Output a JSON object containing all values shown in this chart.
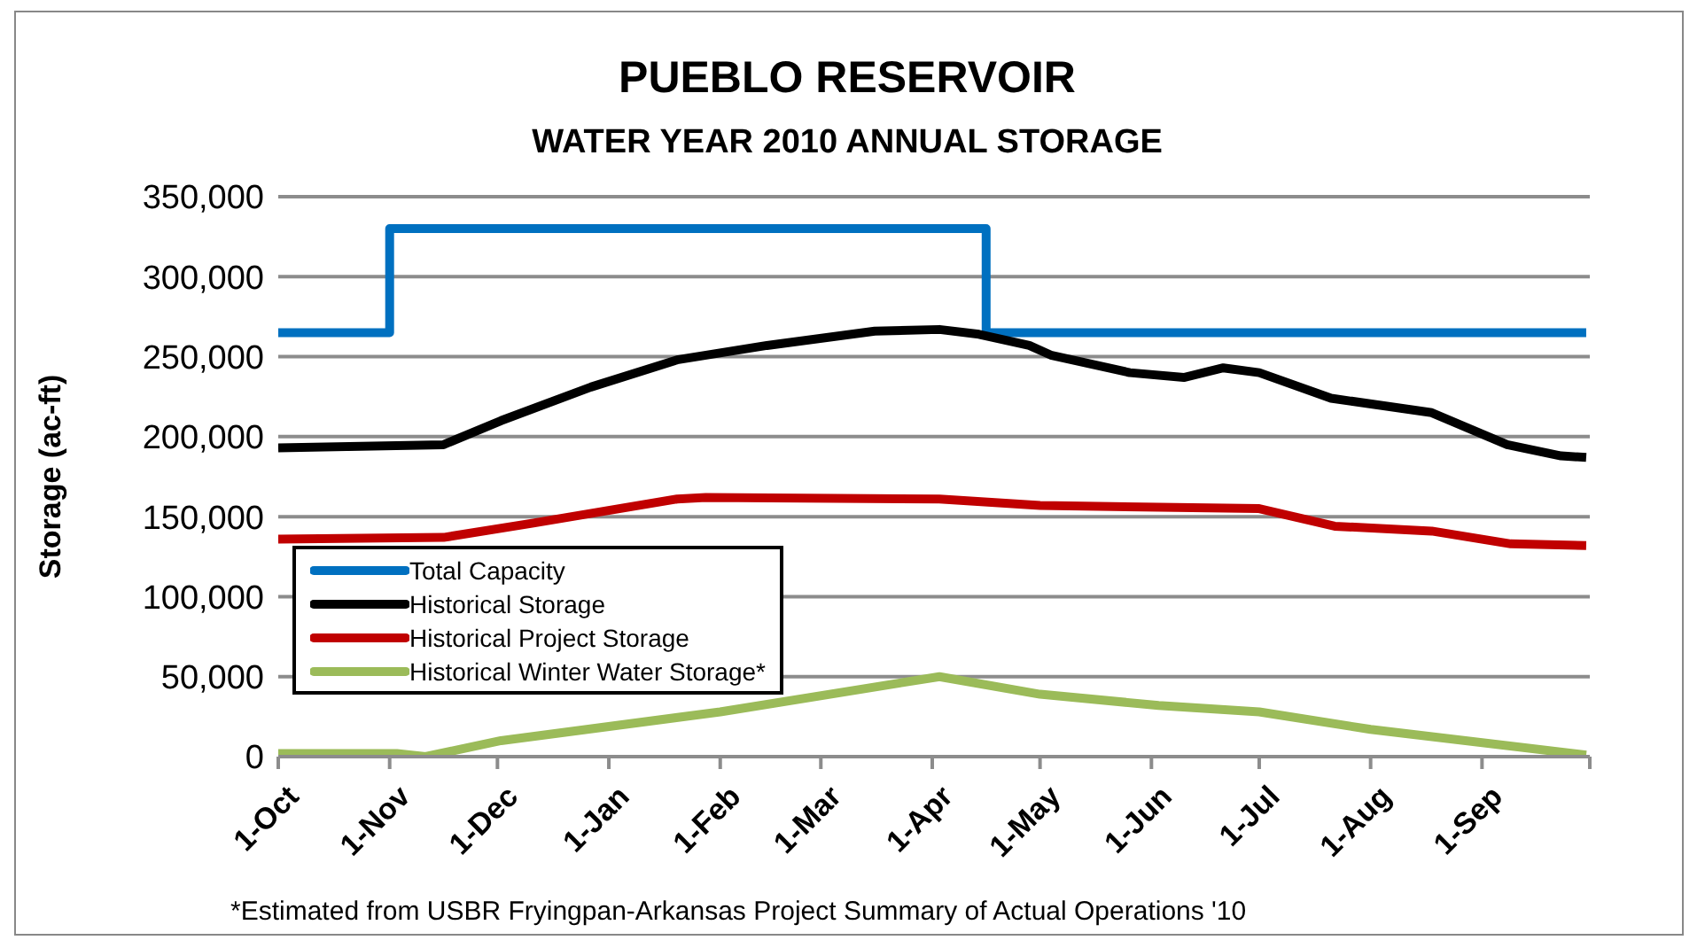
{
  "chart_data": {
    "type": "line",
    "title": "PUEBLO RESERVOIR",
    "subtitle": "WATER YEAR 2010 ANNUAL STORAGE",
    "ylabel": "Storage (ac-ft)",
    "annotations": [
      "*Estimated from USBR Fryingpan-Arkansas Project Summary of Actual Operations '10"
    ],
    "xlim": [
      "2009-10-01",
      "2010-10-01"
    ],
    "xticks": [
      {
        "value": "2009-10-01",
        "label": "1-Oct"
      },
      {
        "value": "2009-11-01",
        "label": "1-Nov"
      },
      {
        "value": "2009-12-01",
        "label": "1-Dec"
      },
      {
        "value": "2010-01-01",
        "label": "1-Jan"
      },
      {
        "value": "2010-02-01",
        "label": "1-Feb"
      },
      {
        "value": "2010-03-01",
        "label": "1-Mar"
      },
      {
        "value": "2010-04-01",
        "label": "1-Apr"
      },
      {
        "value": "2010-05-01",
        "label": "1-May"
      },
      {
        "value": "2010-06-01",
        "label": "1-Jun"
      },
      {
        "value": "2010-07-01",
        "label": "1-Jul"
      },
      {
        "value": "2010-08-01",
        "label": "1-Aug"
      },
      {
        "value": "2010-09-01",
        "label": "1-Sep"
      },
      {
        "value": "2010-10-01",
        "label": null
      }
    ],
    "ylim": [
      0,
      350000
    ],
    "yticks": [
      {
        "value": 0,
        "label": "0"
      },
      {
        "value": 50000,
        "label": "50,000"
      },
      {
        "value": 100000,
        "label": "100,000"
      },
      {
        "value": 150000,
        "label": "150,000"
      },
      {
        "value": 200000,
        "label": "200,000"
      },
      {
        "value": 250000,
        "label": "250,000"
      },
      {
        "value": 300000,
        "label": "300,000"
      },
      {
        "value": 350000,
        "label": "350,000"
      }
    ],
    "grid": "y",
    "legend": "bottom left",
    "marker": "none",
    "line_style": "solid",
    "series": [
      {
        "name": "Total Capacity",
        "color": "#0070c0",
        "x": [
          "2009-10-01",
          "2009-11-01",
          "2009-11-01",
          "2010-04-16",
          "2010-04-16",
          "2010-09-30"
        ],
        "values": [
          265000,
          265000,
          330000,
          330000,
          265000,
          265000
        ]
      },
      {
        "name": "Historical Storage",
        "color": "#000000",
        "x": [
          "2009-10-01",
          "2009-11-16",
          "2009-12-02",
          "2009-12-27",
          "2010-01-20",
          "2010-02-14",
          "2010-03-16",
          "2010-04-03",
          "2010-04-14",
          "2010-04-28",
          "2010-05-04",
          "2010-05-26",
          "2010-06-10",
          "2010-06-21",
          "2010-07-01",
          "2010-07-21",
          "2010-08-18",
          "2010-09-08",
          "2010-09-23",
          "2010-09-30"
        ],
        "values": [
          193000,
          195000,
          210000,
          231000,
          248000,
          257000,
          266000,
          267000,
          264000,
          257000,
          251000,
          240000,
          237000,
          243000,
          240000,
          224000,
          215000,
          195000,
          188000,
          187000
        ]
      },
      {
        "name": "Historical Project Storage",
        "color": "#c00000",
        "x": [
          "2009-10-01",
          "2009-11-16",
          "2009-12-11",
          "2010-01-20",
          "2010-01-28",
          "2010-04-03",
          "2010-05-01",
          "2010-07-01",
          "2010-07-22",
          "2010-08-18",
          "2010-09-09",
          "2010-09-30"
        ],
        "values": [
          136000,
          137000,
          146000,
          161000,
          162000,
          161000,
          157000,
          155000,
          144000,
          141000,
          133000,
          132000
        ]
      },
      {
        "name": "Historical Winter Water Storage*",
        "color": "#9bbb59",
        "x": [
          "2009-10-01",
          "2009-11-03",
          "2009-11-11",
          "2009-12-02",
          "2010-02-01",
          "2010-04-03",
          "2010-05-01",
          "2010-06-03",
          "2010-07-01",
          "2010-08-01",
          "2010-09-30"
        ],
        "values": [
          2000,
          2000,
          0,
          10000,
          28000,
          50000,
          39000,
          32000,
          28000,
          17000,
          1000
        ]
      }
    ]
  }
}
